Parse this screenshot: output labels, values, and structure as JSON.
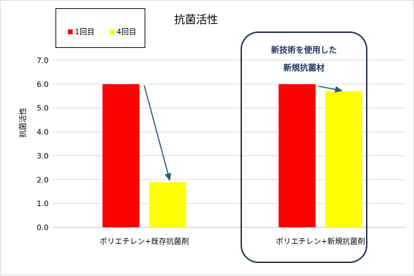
{
  "chart_data": {
    "type": "bar",
    "title": "抗菌活性",
    "xlabel": "",
    "ylabel": "抗菌活性",
    "ylim": [
      0,
      7
    ],
    "yticks": [
      "0.0",
      "1.0",
      "2.0",
      "3.0",
      "4.0",
      "5.0",
      "6.0",
      "7.0"
    ],
    "grid": true,
    "legend_position": "top-left",
    "categories": [
      "ポリエチレン+既存抗菌剤",
      "ポリエチレン+新規抗菌剤"
    ],
    "series": [
      {
        "name": "1回目",
        "values": [
          6.0,
          6.0
        ],
        "color": "#ff0000"
      },
      {
        "name": "4回目",
        "values": [
          1.9,
          5.7
        ],
        "color": "#ffff00"
      }
    ],
    "annotations": {
      "callout_lines": [
        "新技術を使用した",
        "新規抗菌材"
      ],
      "arrow_color": "#1f5c7a",
      "callout_border_color": "#1f2f4f"
    }
  }
}
